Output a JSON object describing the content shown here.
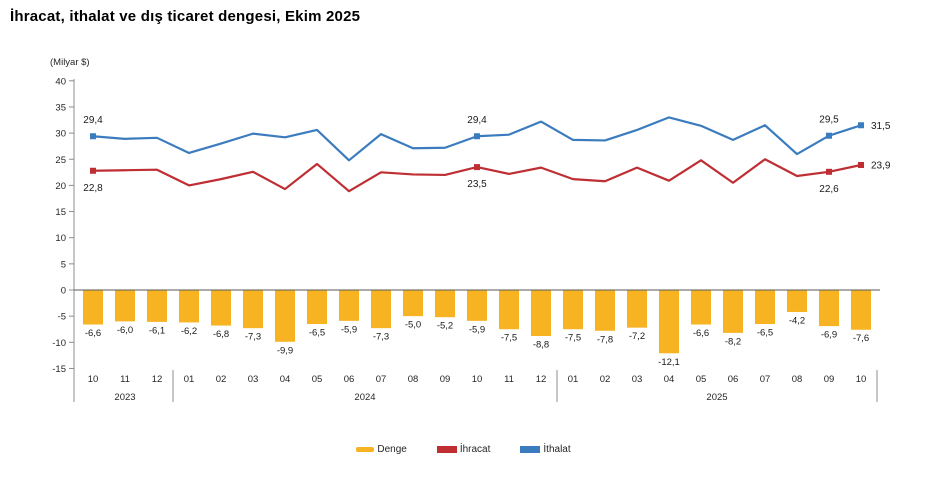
{
  "title": "İhracat, ithalat ve dış ticaret dengesi, Ekim 2025",
  "legend": {
    "items": [
      {
        "label": "Denge",
        "color": "#F8B322",
        "swatch": "bar"
      },
      {
        "label": "İhracat",
        "color": "#BE2E33",
        "swatch": "line"
      },
      {
        "label": "İthalat",
        "color": "#3B7CBF",
        "swatch": "line"
      }
    ]
  },
  "chart_data": {
    "type": "combo_bar_line",
    "title": "İhracat, ithalat ve dış ticaret dengesi, Ekim 2025",
    "y_axis_label": "(Milyar $)",
    "ylim": [
      -15,
      40
    ],
    "y_tick_step": 5,
    "grid": false,
    "legend_position": "bottom",
    "categories": [
      "10",
      "11",
      "12",
      "01",
      "02",
      "03",
      "04",
      "05",
      "06",
      "07",
      "08",
      "09",
      "10",
      "11",
      "12",
      "01",
      "02",
      "03",
      "04",
      "05",
      "06",
      "07",
      "08",
      "09",
      "10"
    ],
    "year_groups": [
      {
        "label": "2023",
        "from": 0,
        "to": 2
      },
      {
        "label": "2024",
        "from": 3,
        "to": 14
      },
      {
        "label": "2025",
        "from": 15,
        "to": 24
      }
    ],
    "series": [
      {
        "name": "Denge",
        "slug": "balance",
        "type": "bar",
        "color": "#F8B322",
        "values": [
          -6.6,
          -6.0,
          -6.1,
          -6.2,
          -6.8,
          -7.3,
          -9.9,
          -6.5,
          -5.9,
          -7.3,
          -5.0,
          -5.2,
          -5.9,
          -7.5,
          -8.8,
          -7.5,
          -7.8,
          -7.2,
          -12.1,
          -6.6,
          -8.2,
          -6.5,
          -4.2,
          -6.9,
          -7.6
        ],
        "labels": [
          "-6,6",
          "-6,0",
          "-6,1",
          "-6,2",
          "-6,8",
          "-7,3",
          "-9,9",
          "-6,5",
          "-5,9",
          "-7,3",
          "-5,0",
          "-5,2",
          "-5,9",
          "-7,5",
          "-8,8",
          "-7,5",
          "-7,8",
          "-7,2",
          "-12,1",
          "-6,6",
          "-8,2",
          "-6,5",
          "-4,2",
          "-6,9",
          "-7,6"
        ]
      },
      {
        "name": "İhracat",
        "slug": "exports",
        "type": "line",
        "color": "#BE2E33",
        "values": [
          22.8,
          22.9,
          23.0,
          20.0,
          21.2,
          22.6,
          19.3,
          24.1,
          18.9,
          22.5,
          22.1,
          22.0,
          23.5,
          22.2,
          23.4,
          21.2,
          20.8,
          23.4,
          20.9,
          24.8,
          20.5,
          25.0,
          21.8,
          22.6,
          23.9
        ],
        "point_labels": [
          {
            "index": 0,
            "text": "22,8",
            "pos": "below"
          },
          {
            "index": 12,
            "text": "23,5",
            "pos": "below"
          },
          {
            "index": 23,
            "text": "22,6",
            "pos": "below"
          },
          {
            "index": 24,
            "text": "23,9",
            "pos": "right"
          }
        ]
      },
      {
        "name": "İthalat",
        "slug": "imports",
        "type": "line",
        "color": "#3B7CBF",
        "values": [
          29.4,
          28.9,
          29.1,
          26.2,
          28.0,
          29.9,
          29.2,
          30.6,
          24.8,
          29.8,
          27.1,
          27.2,
          29.4,
          29.7,
          32.2,
          28.7,
          28.6,
          30.6,
          33.0,
          31.4,
          28.7,
          31.5,
          26.0,
          29.5,
          31.5
        ],
        "point_labels": [
          {
            "index": 0,
            "text": "29,4",
            "pos": "above"
          },
          {
            "index": 12,
            "text": "29,4",
            "pos": "above"
          },
          {
            "index": 23,
            "text": "29,5",
            "pos": "above"
          },
          {
            "index": 24,
            "text": "31,5",
            "pos": "right"
          }
        ]
      }
    ]
  }
}
